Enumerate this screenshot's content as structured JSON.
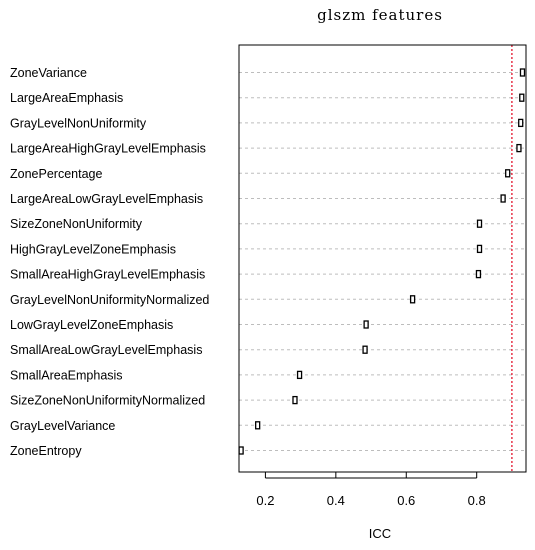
{
  "chart_data": {
    "type": "scatter",
    "title": "glszm features",
    "xlabel": "ICC",
    "ylabel": "",
    "xlim": [
      0.125,
      0.94
    ],
    "xticks": [
      0.2,
      0.4,
      0.6,
      0.8
    ],
    "tick_labels": [
      "0.2",
      "0.4",
      "0.6",
      "0.8"
    ],
    "reference_line": {
      "x": 0.9,
      "color": "#e0001b",
      "style": "dotted"
    },
    "grid": "horizontal dotted",
    "marker": "open rectangle",
    "categories": [
      "ZoneVariance",
      "LargeAreaEmphasis",
      "GrayLevelNonUniformity",
      "LargeAreaHighGrayLevelEmphasis",
      "ZonePercentage",
      "LargeAreaLowGrayLevelEmphasis",
      "SizeZoneNonUniformity",
      "HighGrayLevelZoneEmphasis",
      "SmallAreaHighGrayLevelEmphasis",
      "GrayLevelNonUniformityNormalized",
      "LowGrayLevelZoneEmphasis",
      "SmallAreaLowGrayLevelEmphasis",
      "SmallAreaEmphasis",
      "SizeZoneNonUniformityNormalized",
      "GrayLevelVariance",
      "ZoneEntropy"
    ],
    "values": [
      0.93,
      0.928,
      0.925,
      0.92,
      0.888,
      0.875,
      0.808,
      0.808,
      0.805,
      0.618,
      0.486,
      0.483,
      0.297,
      0.284,
      0.178,
      0.131
    ]
  }
}
